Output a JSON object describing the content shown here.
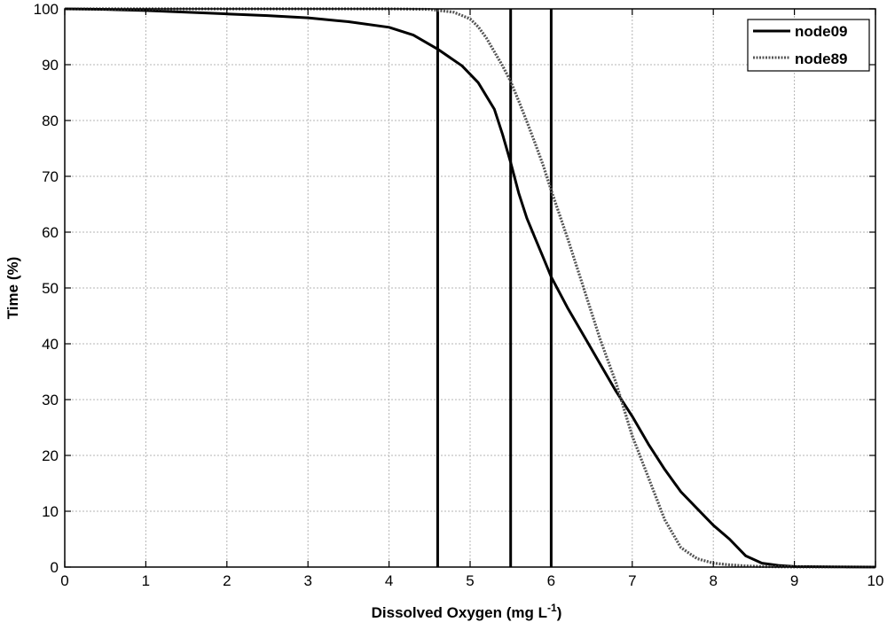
{
  "chart_data": {
    "type": "line",
    "title": "",
    "xlabel": "Dissolved Oxygen (mg L",
    "xlabel_superscript": "-1",
    "xlabel_suffix": ")",
    "ylabel": "Time (%)",
    "xlim": [
      0,
      10
    ],
    "ylim": [
      0,
      100
    ],
    "xticks": [
      0,
      1,
      2,
      3,
      4,
      5,
      6,
      7,
      8,
      9,
      10
    ],
    "yticks": [
      0,
      10,
      20,
      30,
      40,
      50,
      60,
      70,
      80,
      90,
      100
    ],
    "grid": true,
    "legend_position": "top-right",
    "vertical_lines": [
      4.6,
      5.5,
      6.0
    ],
    "series": [
      {
        "name": "node09",
        "style": "solid",
        "color": "#000000",
        "x": [
          0,
          0.5,
          1,
          1.5,
          2,
          2.5,
          3,
          3.5,
          4,
          4.3,
          4.6,
          4.9,
          5.1,
          5.3,
          5.4,
          5.5,
          5.6,
          5.7,
          5.8,
          5.9,
          6.0,
          6.2,
          6.4,
          6.6,
          6.8,
          7.0,
          7.2,
          7.4,
          7.6,
          7.8,
          8.0,
          8.2,
          8.4,
          8.6,
          8.8,
          9.0,
          9.5,
          10
        ],
        "y": [
          100,
          99.9,
          99.7,
          99.4,
          99.1,
          98.8,
          98.4,
          97.7,
          96.7,
          95.3,
          92.8,
          89.8,
          86.8,
          82.0,
          77.5,
          72.5,
          67.0,
          62.5,
          59.0,
          55.5,
          52.0,
          46.5,
          41.5,
          36.5,
          31.5,
          27.0,
          22.0,
          17.5,
          13.5,
          10.5,
          7.5,
          5.0,
          2.0,
          0.7,
          0.3,
          0.1,
          0.03,
          0
        ]
      },
      {
        "name": "node89",
        "style": "dotted",
        "color": "#555555",
        "x": [
          0,
          1,
          2,
          3,
          4,
          4.5,
          4.8,
          5.0,
          5.1,
          5.2,
          5.3,
          5.4,
          5.5,
          5.6,
          5.7,
          5.8,
          5.9,
          6.0,
          6.2,
          6.4,
          6.6,
          6.8,
          7.0,
          7.2,
          7.4,
          7.6,
          7.8,
          8.0,
          8.2,
          8.4,
          8.6,
          8.8,
          9.0,
          10
        ],
        "y": [
          100,
          100,
          100,
          100,
          100,
          99.9,
          99.4,
          98.2,
          96.8,
          94.8,
          92.3,
          89.8,
          87.0,
          83.5,
          79.8,
          76.0,
          72.0,
          67.5,
          59.0,
          50.0,
          41.0,
          33.0,
          23.5,
          16.0,
          8.5,
          3.5,
          1.5,
          0.7,
          0.4,
          0.2,
          0.1,
          0.05,
          0.02,
          0
        ]
      }
    ]
  }
}
